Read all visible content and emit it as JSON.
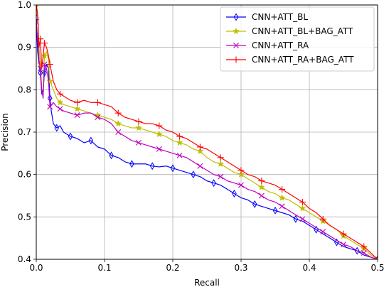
{
  "chart_data": {
    "type": "line",
    "title": "",
    "xlabel": "Recall",
    "ylabel": "Precision",
    "xlim": [
      0.0,
      0.5
    ],
    "ylim": [
      0.4,
      1.0
    ],
    "xticks": [
      "0.0",
      "0.1",
      "0.2",
      "0.3",
      "0.4",
      "0.5"
    ],
    "yticks": [
      "0.4",
      "0.5",
      "0.6",
      "0.7",
      "0.8",
      "0.9",
      "1.0"
    ],
    "grid": true,
    "legend_position": "top-right",
    "series": [
      {
        "name": "CNN+ATT_BL",
        "color": "#0000ff",
        "marker": "thin_diamond",
        "x": [
          0.0,
          0.002,
          0.004,
          0.006,
          0.008,
          0.01,
          0.012,
          0.015,
          0.018,
          0.02,
          0.022,
          0.025,
          0.03,
          0.035,
          0.04,
          0.05,
          0.06,
          0.07,
          0.08,
          0.09,
          0.1,
          0.11,
          0.12,
          0.13,
          0.14,
          0.15,
          0.16,
          0.17,
          0.18,
          0.19,
          0.2,
          0.21,
          0.22,
          0.23,
          0.24,
          0.25,
          0.26,
          0.27,
          0.28,
          0.29,
          0.3,
          0.31,
          0.32,
          0.33,
          0.34,
          0.35,
          0.36,
          0.37,
          0.38,
          0.39,
          0.4,
          0.41,
          0.42,
          0.43,
          0.44,
          0.45,
          0.46,
          0.47,
          0.48,
          0.49,
          0.5
        ],
        "y": [
          0.97,
          0.89,
          0.86,
          0.84,
          0.79,
          0.8,
          0.84,
          0.86,
          0.85,
          0.78,
          0.75,
          0.72,
          0.71,
          0.715,
          0.7,
          0.69,
          0.685,
          0.675,
          0.68,
          0.665,
          0.66,
          0.645,
          0.64,
          0.63,
          0.625,
          0.625,
          0.625,
          0.62,
          0.618,
          0.62,
          0.615,
          0.61,
          0.605,
          0.6,
          0.595,
          0.585,
          0.58,
          0.575,
          0.565,
          0.555,
          0.545,
          0.54,
          0.53,
          0.525,
          0.52,
          0.515,
          0.51,
          0.505,
          0.495,
          0.49,
          0.48,
          0.47,
          0.46,
          0.45,
          0.44,
          0.43,
          0.425,
          0.42,
          0.41,
          0.405,
          0.4
        ]
      },
      {
        "name": "CNN+ATT_BL+BAG_ATT",
        "color": "#bfbf00",
        "marker": "star",
        "x": [
          0.0,
          0.002,
          0.004,
          0.006,
          0.008,
          0.01,
          0.012,
          0.015,
          0.018,
          0.02,
          0.025,
          0.03,
          0.035,
          0.04,
          0.05,
          0.06,
          0.07,
          0.08,
          0.09,
          0.1,
          0.11,
          0.12,
          0.13,
          0.14,
          0.15,
          0.16,
          0.17,
          0.18,
          0.19,
          0.2,
          0.21,
          0.22,
          0.23,
          0.24,
          0.25,
          0.26,
          0.27,
          0.28,
          0.29,
          0.3,
          0.31,
          0.32,
          0.33,
          0.34,
          0.35,
          0.36,
          0.37,
          0.38,
          0.39,
          0.4,
          0.41,
          0.42,
          0.43,
          0.44,
          0.45,
          0.46,
          0.47,
          0.48,
          0.49,
          0.5
        ],
        "y": [
          1.0,
          0.97,
          0.9,
          0.86,
          0.8,
          0.8,
          0.88,
          0.89,
          0.87,
          0.82,
          0.8,
          0.78,
          0.77,
          0.765,
          0.76,
          0.755,
          0.75,
          0.745,
          0.74,
          0.735,
          0.73,
          0.72,
          0.715,
          0.71,
          0.71,
          0.705,
          0.7,
          0.695,
          0.69,
          0.68,
          0.675,
          0.67,
          0.66,
          0.655,
          0.64,
          0.63,
          0.625,
          0.615,
          0.605,
          0.6,
          0.59,
          0.58,
          0.57,
          0.56,
          0.555,
          0.545,
          0.54,
          0.53,
          0.52,
          0.51,
          0.5,
          0.49,
          0.48,
          0.47,
          0.455,
          0.445,
          0.435,
          0.425,
          0.41,
          0.4
        ]
      },
      {
        "name": "CNN+ATT_RA",
        "color": "#bf00bf",
        "marker": "x",
        "x": [
          0.0,
          0.002,
          0.004,
          0.006,
          0.008,
          0.01,
          0.012,
          0.015,
          0.018,
          0.02,
          0.025,
          0.03,
          0.035,
          0.04,
          0.05,
          0.06,
          0.07,
          0.08,
          0.09,
          0.1,
          0.11,
          0.12,
          0.13,
          0.14,
          0.15,
          0.16,
          0.17,
          0.18,
          0.19,
          0.2,
          0.21,
          0.22,
          0.23,
          0.24,
          0.25,
          0.26,
          0.27,
          0.28,
          0.29,
          0.3,
          0.31,
          0.32,
          0.33,
          0.34,
          0.35,
          0.36,
          0.37,
          0.38,
          0.39,
          0.4,
          0.41,
          0.42,
          0.43,
          0.44,
          0.45,
          0.46,
          0.47,
          0.48,
          0.49,
          0.5
        ],
        "y": [
          0.96,
          0.92,
          0.87,
          0.85,
          0.8,
          0.78,
          0.86,
          0.85,
          0.82,
          0.76,
          0.77,
          0.76,
          0.755,
          0.75,
          0.745,
          0.74,
          0.745,
          0.745,
          0.735,
          0.73,
          0.72,
          0.7,
          0.69,
          0.68,
          0.675,
          0.67,
          0.665,
          0.66,
          0.655,
          0.65,
          0.645,
          0.64,
          0.63,
          0.62,
          0.61,
          0.6,
          0.595,
          0.585,
          0.58,
          0.575,
          0.565,
          0.56,
          0.55,
          0.54,
          0.535,
          0.525,
          0.515,
          0.505,
          0.495,
          0.485,
          0.475,
          0.465,
          0.455,
          0.445,
          0.435,
          0.43,
          0.42,
          0.415,
          0.405,
          0.4
        ]
      },
      {
        "name": "CNN+ATT_RA+BAG_ATT",
        "color": "#ff0000",
        "marker": "+",
        "x": [
          0.0,
          0.002,
          0.004,
          0.006,
          0.008,
          0.01,
          0.012,
          0.015,
          0.018,
          0.02,
          0.025,
          0.03,
          0.035,
          0.04,
          0.05,
          0.06,
          0.07,
          0.08,
          0.09,
          0.1,
          0.11,
          0.12,
          0.13,
          0.14,
          0.15,
          0.16,
          0.17,
          0.18,
          0.19,
          0.2,
          0.21,
          0.22,
          0.23,
          0.24,
          0.25,
          0.26,
          0.27,
          0.28,
          0.29,
          0.3,
          0.31,
          0.32,
          0.33,
          0.34,
          0.35,
          0.36,
          0.37,
          0.38,
          0.39,
          0.4,
          0.41,
          0.42,
          0.43,
          0.44,
          0.45,
          0.46,
          0.47,
          0.48,
          0.49,
          0.5
        ],
        "y": [
          1.0,
          0.98,
          0.9,
          0.92,
          0.85,
          0.88,
          0.91,
          0.9,
          0.88,
          0.86,
          0.82,
          0.8,
          0.79,
          0.785,
          0.775,
          0.77,
          0.775,
          0.77,
          0.77,
          0.765,
          0.76,
          0.745,
          0.735,
          0.73,
          0.725,
          0.72,
          0.72,
          0.715,
          0.705,
          0.7,
          0.69,
          0.685,
          0.675,
          0.665,
          0.66,
          0.65,
          0.64,
          0.63,
          0.62,
          0.61,
          0.6,
          0.595,
          0.585,
          0.58,
          0.575,
          0.565,
          0.555,
          0.545,
          0.535,
          0.52,
          0.51,
          0.495,
          0.48,
          0.47,
          0.46,
          0.45,
          0.44,
          0.43,
          0.415,
          0.4
        ]
      }
    ]
  }
}
